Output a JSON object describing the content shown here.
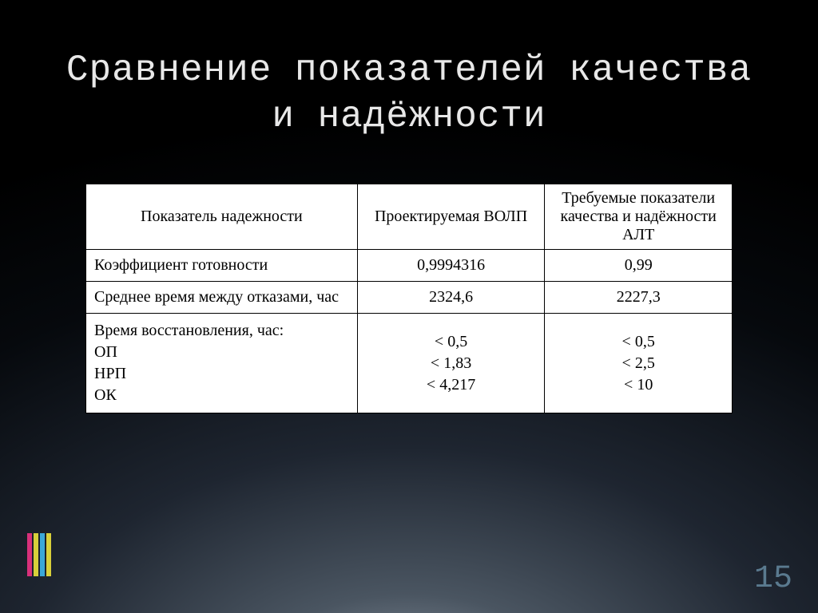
{
  "slide": {
    "title": "Сравнение показателей качества и надёжности",
    "page_number": "15"
  },
  "table": {
    "type": "table",
    "background_color": "#ffffff",
    "border_color": "#000000",
    "font_family": "Times New Roman",
    "font_size_pt": 15,
    "columns": [
      {
        "label": "Показатель надежности",
        "align": "center",
        "width_pct": 42
      },
      {
        "label": "Проектируемая ВОЛП",
        "align": "center",
        "width_pct": 29
      },
      {
        "label": "Требуемые показатели качества и надёжности АЛТ",
        "align": "center",
        "width_pct": 29
      }
    ],
    "rows": [
      {
        "metric": "Коэффициент готовности",
        "v1": "0,9994316",
        "v2": "0,99"
      },
      {
        "metric": "Среднее время между отказами, час",
        "v1": "2324,6",
        "v2": "2227,3"
      },
      {
        "metric": "Время восстановления, час:\nОП\nНРП\nОК",
        "v1": "< 0,5\n< 1,83\n<  4,217",
        "v2": "< 0,5\n< 2,5\n< 10"
      }
    ]
  },
  "accent_colors": [
    "#d8307a",
    "#d8d03a",
    "#3aa8d8",
    "#d8d03a"
  ]
}
